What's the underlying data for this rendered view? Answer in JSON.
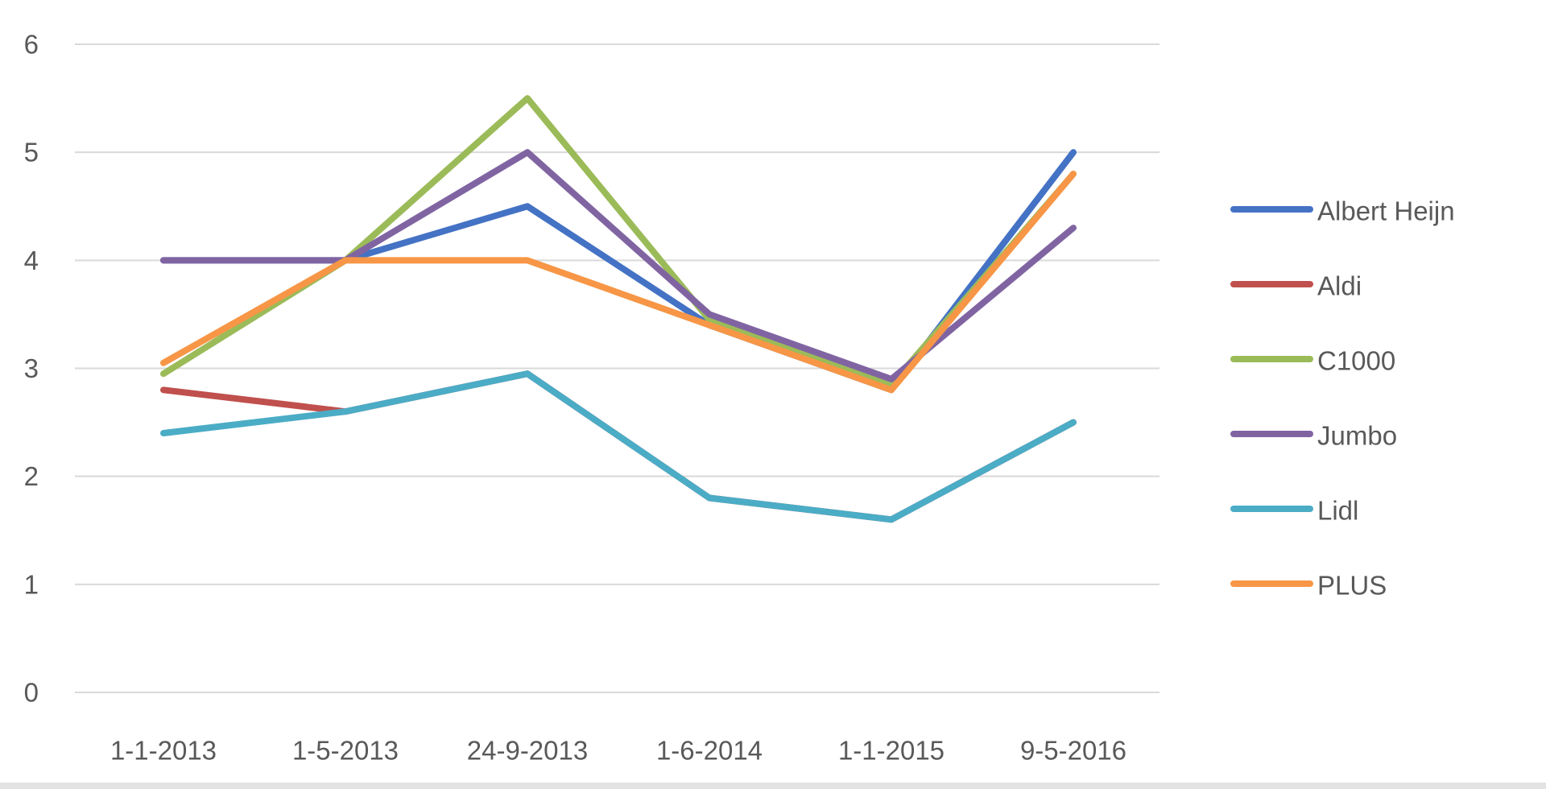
{
  "chart_data": {
    "type": "line",
    "title": "",
    "xlabel": "",
    "ylabel": "",
    "categories": [
      "1-1-2013",
      "1-5-2013",
      "24-9-2013",
      "1-6-2014",
      "1-1-2015",
      "9-5-2016"
    ],
    "y_ticks": [
      "0",
      "1",
      "2",
      "3",
      "4",
      "5",
      "6"
    ],
    "ylim": [
      0,
      6
    ],
    "grid": true,
    "legend_position": "right",
    "series": [
      {
        "name": "Albert Heijn",
        "color": "#4472c4",
        "values": [
          4.0,
          4.0,
          4.5,
          3.4,
          2.8,
          5.0
        ]
      },
      {
        "name": "Aldi",
        "color": "#c0504d",
        "values": [
          2.8,
          2.6,
          2.95,
          1.8,
          1.6,
          2.5
        ]
      },
      {
        "name": "C1000",
        "color": "#9bbb59",
        "values": [
          2.95,
          4.0,
          5.5,
          3.45,
          2.85,
          4.8
        ]
      },
      {
        "name": "Jumbo",
        "color": "#8064a2",
        "values": [
          4.0,
          4.0,
          5.0,
          3.5,
          2.9,
          4.3
        ]
      },
      {
        "name": "Lidl",
        "color": "#4bacc6",
        "values": [
          2.4,
          2.6,
          2.95,
          1.8,
          1.6,
          2.5
        ]
      },
      {
        "name": "PLUS",
        "color": "#f79646",
        "values": [
          3.05,
          4.0,
          4.0,
          3.4,
          2.8,
          4.8
        ]
      }
    ]
  }
}
